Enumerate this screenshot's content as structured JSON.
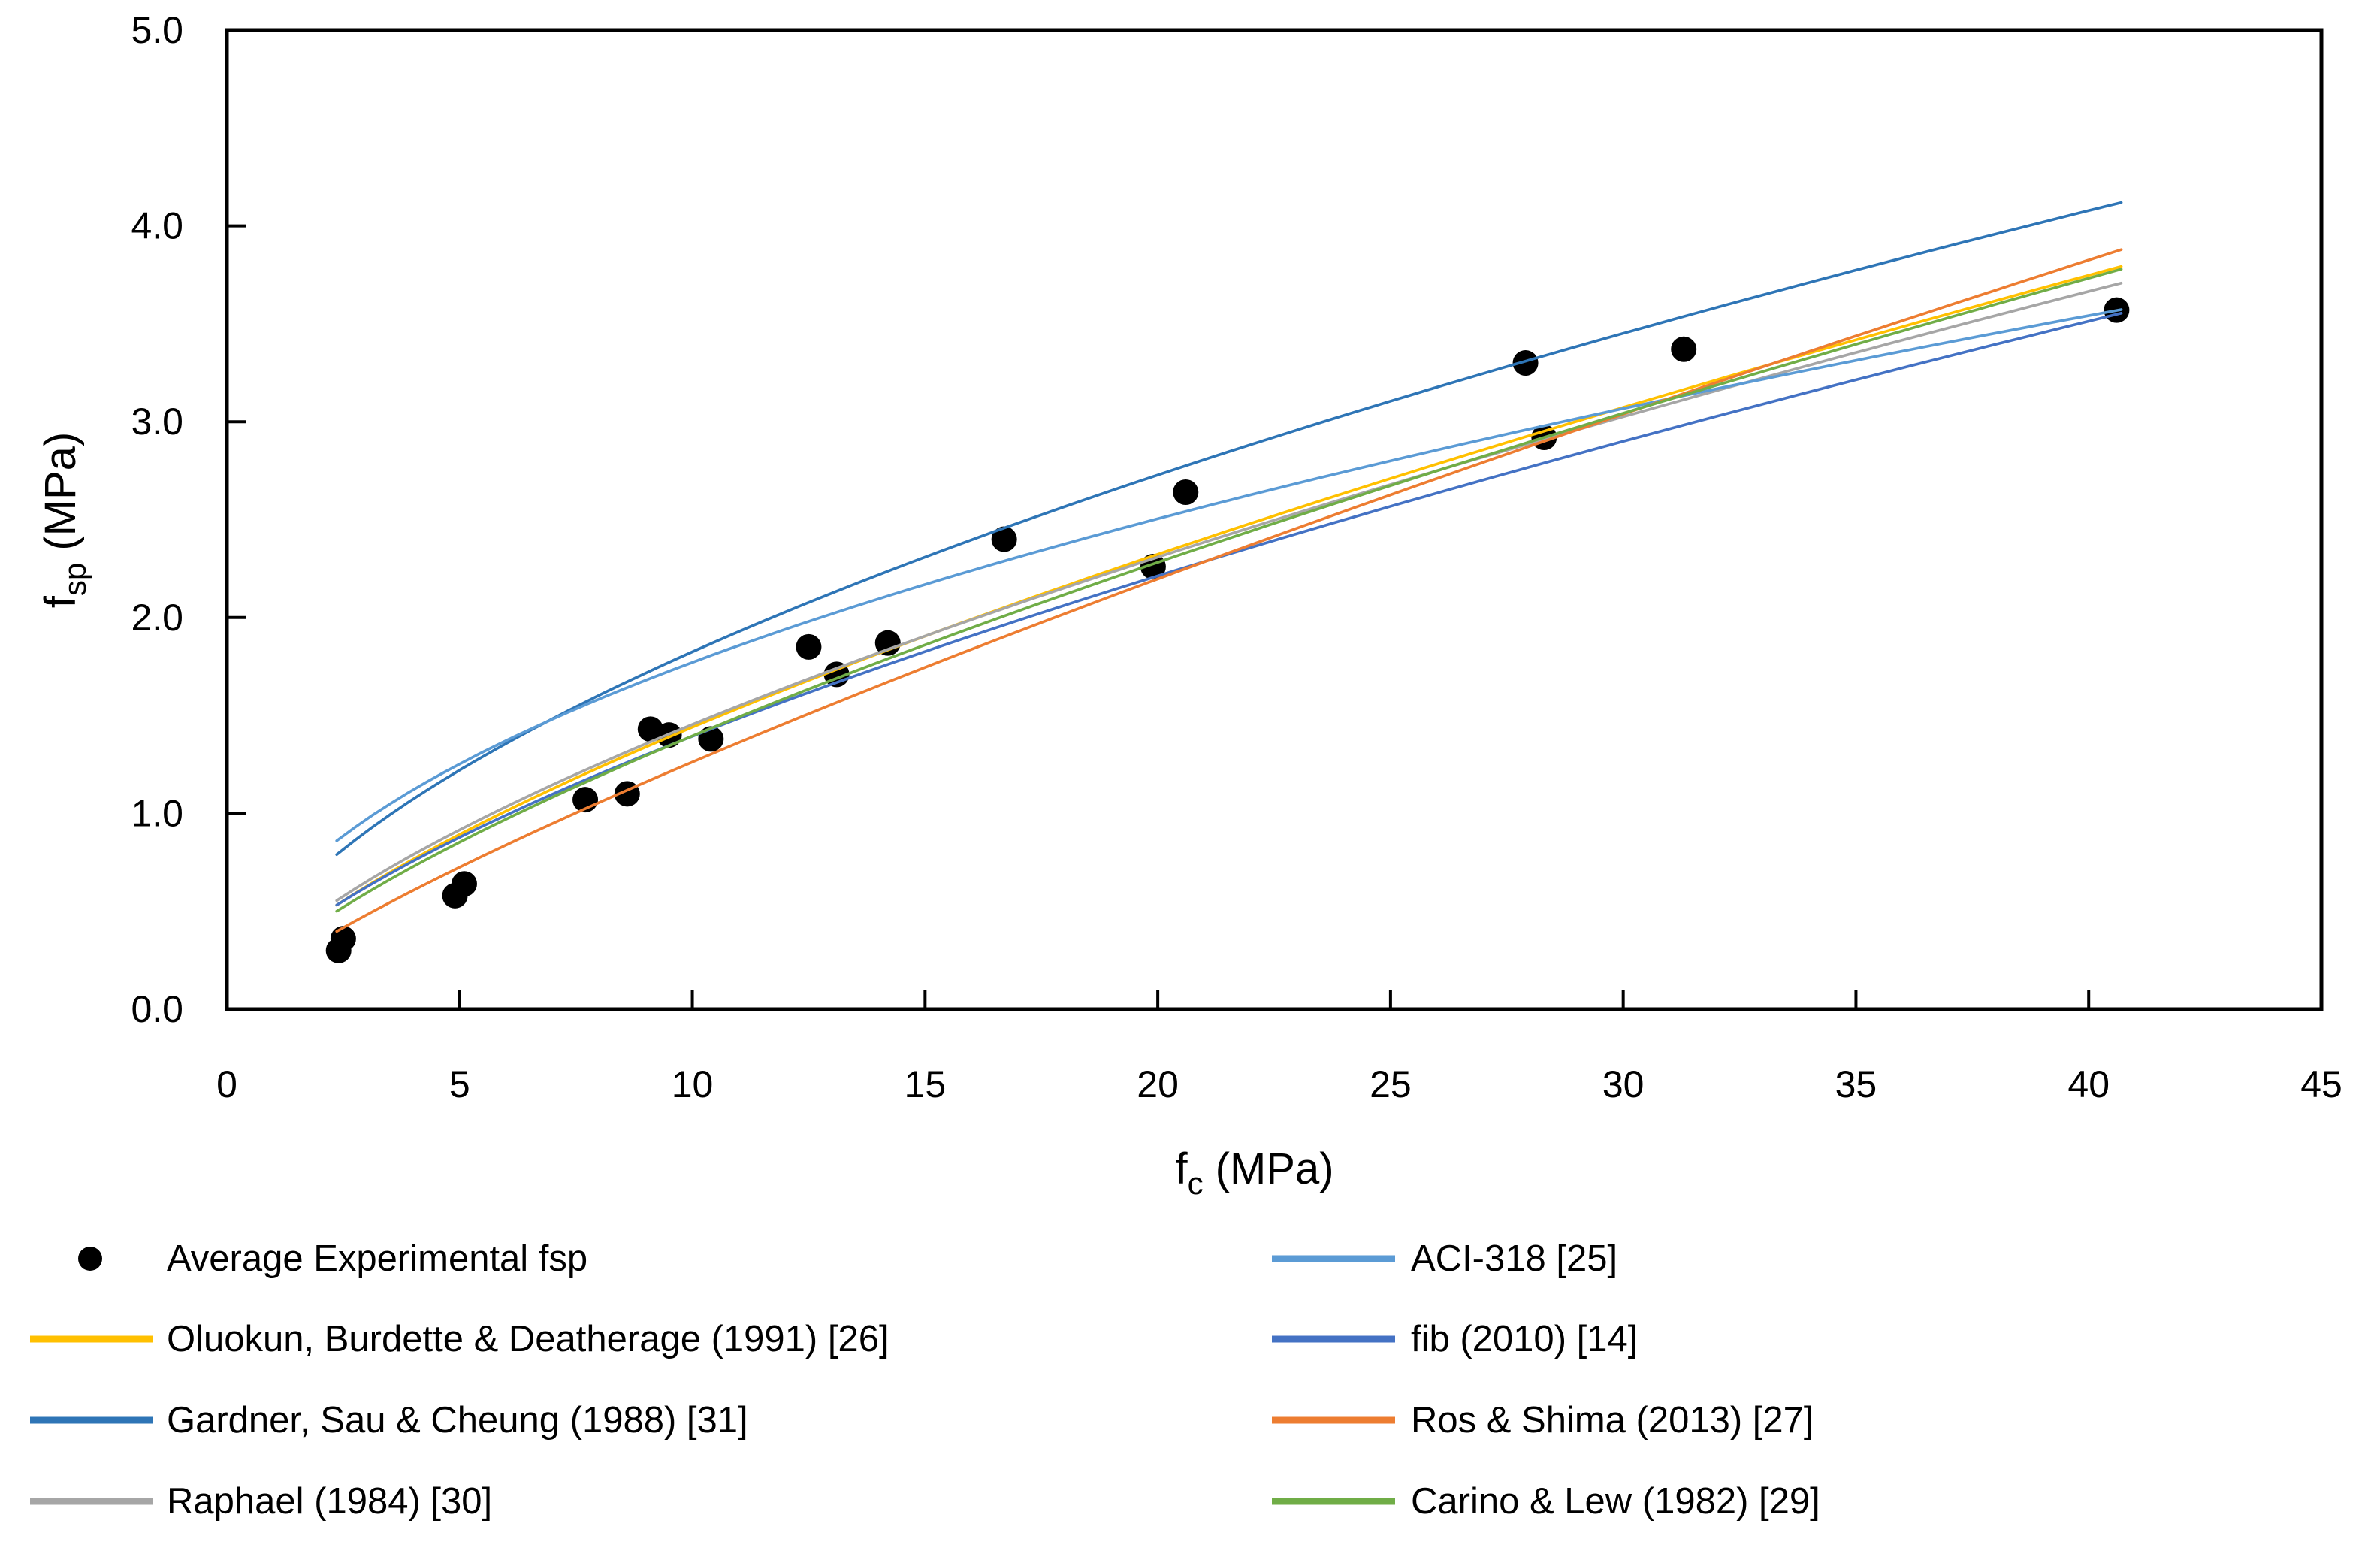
{
  "axes": {
    "x": {
      "title_main": "f",
      "title_sub": "c",
      "title_rest": " (MPa)",
      "ticks": [
        "0",
        "5",
        "10",
        "15",
        "20",
        "25",
        "30",
        "35",
        "40",
        "45"
      ],
      "range": [
        0,
        45
      ]
    },
    "y": {
      "title_main": "f",
      "title_sub": "sp",
      "title_rest": " (MPa)",
      "ticks": [
        "0.0",
        "1.0",
        "2.0",
        "3.0",
        "4.0",
        "5.0"
      ],
      "range": [
        0,
        5
      ]
    }
  },
  "chart_data": {
    "type": "scatter",
    "title": "",
    "xlabel": "fc (MPa)",
    "ylabel": "fsp (MPa)",
    "xlim": [
      0,
      45
    ],
    "ylim": [
      0,
      5
    ],
    "grid": false,
    "legend_position": "bottom-two-columns",
    "scatter_series": {
      "name": "Average Experimental fsp",
      "color": "#000000",
      "marker_radius": 17,
      "points": [
        [
          2.4,
          0.3
        ],
        [
          2.5,
          0.36
        ],
        [
          4.9,
          0.58
        ],
        [
          5.1,
          0.64
        ],
        [
          7.7,
          1.07
        ],
        [
          8.6,
          1.1
        ],
        [
          9.1,
          1.43
        ],
        [
          9.5,
          1.4
        ],
        [
          10.4,
          1.38
        ],
        [
          12.5,
          1.85
        ],
        [
          13.1,
          1.71
        ],
        [
          14.2,
          1.87
        ],
        [
          16.7,
          2.4
        ],
        [
          19.9,
          2.26
        ],
        [
          20.6,
          2.64
        ],
        [
          27.9,
          3.3
        ],
        [
          28.3,
          2.92
        ],
        [
          31.3,
          3.37
        ],
        [
          40.6,
          3.57
        ]
      ]
    },
    "curves": [
      {
        "name": "Oluokun, Burdette & Deatherage (1991) [26]",
        "color": "#FFC000",
        "formula": "fsp = a*fc^b",
        "a": 0.294,
        "b": 0.69,
        "fc_domain": [
          2.36,
          40.7
        ]
      },
      {
        "name": "Gardner, Sau & Cheung (1988) [31]",
        "color": "#2E75B6",
        "formula": "fsp = a*fc^b",
        "a": 0.48,
        "b": 0.58,
        "fc_domain": [
          2.36,
          40.7
        ]
      },
      {
        "name": "Raphael (1984) [30]",
        "color": "#A6A6A6",
        "formula": "fsp = a*fc^b",
        "a": 0.313,
        "b": 0.667,
        "fc_domain": [
          2.36,
          40.7
        ]
      },
      {
        "name": "ACI-318 [25]",
        "color": "#5B9BD5",
        "formula": "fsp = a*fc^b",
        "a": 0.56,
        "b": 0.5,
        "fc_domain": [
          2.36,
          40.7
        ]
      },
      {
        "name": "fib (2010) [14]",
        "color": "#4472C4",
        "formula": "fsp = a*fc^b",
        "a": 0.3,
        "b": 0.667,
        "fc_domain": [
          2.36,
          40.7
        ]
      },
      {
        "name": "Ros & Shima (2013) [27]",
        "color": "#ED7D31",
        "formula": "fsp = a*fc^b",
        "a": 0.2,
        "b": 0.8,
        "fc_domain": [
          2.36,
          40.7
        ]
      },
      {
        "name": "Carino & Lew (1982) [29]",
        "color": "#70AD47",
        "formula": "fsp = a*fc^b",
        "a": 0.272,
        "b": 0.71,
        "fc_domain": [
          2.36,
          40.7
        ]
      }
    ],
    "legend": {
      "left": [
        {
          "label": "Average Experimental fsp",
          "marker": "dot",
          "color": "#000000"
        },
        {
          "label": "Oluokun, Burdette & Deatherage (1991) [26]",
          "marker": "line",
          "color": "#FFC000"
        },
        {
          "label": "Gardner, Sau & Cheung (1988) [31]",
          "marker": "line",
          "color": "#2E75B6"
        },
        {
          "label": "Raphael (1984) [30]",
          "marker": "line",
          "color": "#A6A6A6"
        }
      ],
      "right": [
        {
          "label": "ACI-318 [25]",
          "marker": "line",
          "color": "#5B9BD5"
        },
        {
          "label": "fib (2010) [14]",
          "marker": "line",
          "color": "#4472C4"
        },
        {
          "label": "Ros & Shima (2013) [27]",
          "marker": "line",
          "color": "#ED7D31"
        },
        {
          "label": "Carino & Lew (1982) [29]",
          "marker": "line",
          "color": "#70AD47"
        }
      ]
    }
  }
}
